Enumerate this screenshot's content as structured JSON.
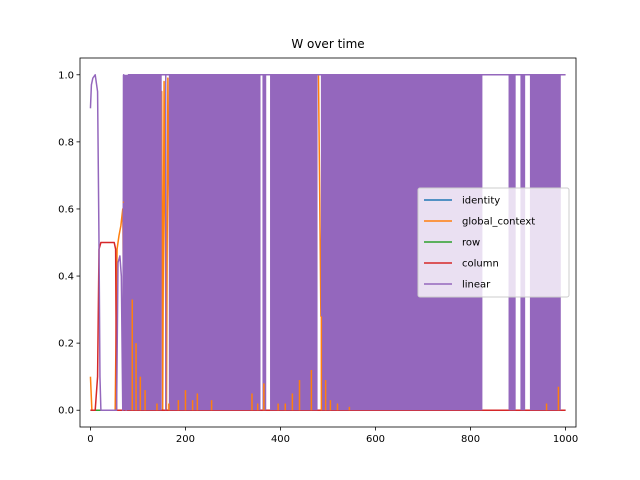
{
  "chart_data": {
    "type": "line",
    "title": "W over time",
    "xlabel": "",
    "ylabel": "",
    "xlim": [
      -22,
      1022
    ],
    "ylim": [
      -0.05,
      1.05
    ],
    "x_ticks": [
      0,
      200,
      400,
      600,
      800,
      1000
    ],
    "x_tick_labels": [
      "0",
      "200",
      "400",
      "600",
      "800",
      "1000"
    ],
    "y_ticks": [
      0.0,
      0.2,
      0.4,
      0.6,
      0.8,
      1.0
    ],
    "y_tick_labels": [
      "0.0",
      "0.2",
      "0.4",
      "0.6",
      "0.8",
      "1.0"
    ],
    "grid": false,
    "legend_position": "center-right",
    "series": [
      {
        "name": "identity",
        "color": "#1f77b4",
        "points": [
          [
            0,
            0.0
          ],
          [
            1000,
            0.0
          ]
        ]
      },
      {
        "name": "global_context",
        "color": "#ff7f0e",
        "points": [
          [
            0,
            0.1
          ],
          [
            3,
            0.0
          ],
          [
            52,
            0.0
          ],
          [
            56,
            0.48
          ],
          [
            60,
            0.52
          ],
          [
            64,
            0.55
          ],
          [
            68,
            0.6
          ],
          [
            72,
            0.0
          ],
          [
            85,
            0.0
          ],
          [
            90,
            0.35
          ],
          [
            95,
            0.0
          ],
          [
            105,
            0.1
          ],
          [
            110,
            0.0
          ],
          [
            120,
            0.05
          ],
          [
            130,
            0.0
          ],
          [
            140,
            0.7
          ],
          [
            145,
            0.0
          ],
          [
            150,
            0.95
          ],
          [
            152,
            0.0
          ],
          [
            155,
            0.98
          ],
          [
            160,
            0.0
          ],
          [
            163,
            0.99
          ],
          [
            170,
            0.0
          ],
          [
            175,
            1.0
          ],
          [
            178,
            0.0
          ],
          [
            185,
            1.0
          ],
          [
            250,
            1.0
          ],
          [
            255,
            0.0
          ],
          [
            260,
            1.0
          ],
          [
            300,
            1.0
          ],
          [
            305,
            0.0
          ],
          [
            310,
            1.0
          ],
          [
            480,
            1.0
          ],
          [
            485,
            0.28
          ],
          [
            490,
            1.0
          ],
          [
            1000,
            1.0
          ]
        ]
      },
      {
        "name": "row",
        "color": "#2ca02c",
        "points": [
          [
            0,
            0.0
          ],
          [
            1000,
            0.0
          ]
        ]
      },
      {
        "name": "column",
        "color": "#d62728",
        "points": [
          [
            0,
            0.0
          ],
          [
            10,
            0.0
          ],
          [
            15,
            0.1
          ],
          [
            18,
            0.48
          ],
          [
            22,
            0.5
          ],
          [
            50,
            0.5
          ],
          [
            53,
            0.48
          ],
          [
            55,
            0.0
          ],
          [
            1000,
            0.0
          ]
        ]
      },
      {
        "name": "linear",
        "color": "#9467bd",
        "points": [
          [
            0,
            0.9
          ],
          [
            2,
            0.97
          ],
          [
            5,
            0.99
          ],
          [
            10,
            1.0
          ],
          [
            15,
            0.95
          ],
          [
            18,
            0.5
          ],
          [
            20,
            0.1
          ],
          [
            22,
            0.0
          ],
          [
            55,
            0.0
          ],
          [
            58,
            0.44
          ],
          [
            62,
            0.46
          ],
          [
            65,
            0.4
          ],
          [
            68,
            0.0
          ],
          [
            70,
            1.0
          ],
          [
            75,
            0.0
          ],
          [
            80,
            1.0
          ],
          [
            1000,
            1.0
          ]
        ]
      }
    ],
    "oscillation_bands": [
      {
        "series": "linear",
        "from": 68,
        "to": 825,
        "low": 0.0,
        "high": 1.0
      },
      {
        "series": "linear",
        "from": 880,
        "to": 895,
        "low": 0.0,
        "high": 1.0
      },
      {
        "series": "linear",
        "from": 905,
        "to": 915,
        "low": 0.0,
        "high": 1.0
      },
      {
        "series": "linear",
        "from": 925,
        "to": 990,
        "low": 0.0,
        "high": 1.0
      }
    ],
    "band_gaps": [
      {
        "from": 150,
        "to": 157
      },
      {
        "from": 160,
        "to": 165
      },
      {
        "from": 358,
        "to": 362
      },
      {
        "from": 370,
        "to": 378
      },
      {
        "from": 478,
        "to": 485
      }
    ]
  }
}
